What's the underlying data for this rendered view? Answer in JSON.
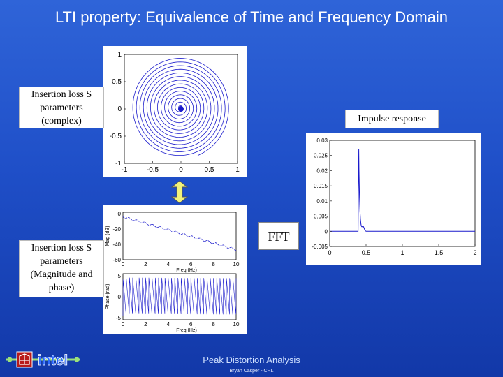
{
  "slide": {
    "title": "LTI property: Equivalence of Time and Frequency Domain",
    "footer_title": "Peak Distortion Analysis",
    "footer_author": "Bryan Casper - CRL",
    "logo_text": "intel"
  },
  "labels": {
    "complex": "Insertion loss S parameters (complex)",
    "impulse": "Impulse response",
    "magphase": "Insertion loss S parameters (Magnitude and phase)",
    "fft": "FFT"
  },
  "colors": {
    "background": "#1f4fc8",
    "plot_line": "#1a1acc",
    "plot_bg": "#ffffff"
  },
  "chart_data": [
    {
      "type": "line",
      "name": "complex-spiral",
      "xlim": [
        -1,
        1
      ],
      "ylim": [
        -1,
        1
      ],
      "xticks": [
        "-1",
        "-0.5",
        "0",
        "0.5",
        "1"
      ],
      "yticks": [
        "1",
        "0.5",
        "0",
        "-0.5",
        "-1"
      ]
    },
    {
      "type": "line",
      "name": "magnitude",
      "xticks": [
        "0",
        "2",
        "4",
        "6",
        "8",
        "10"
      ],
      "yticks": [
        "0",
        "-20",
        "-40",
        "-60"
      ],
      "ylabel": "Mag (dB)",
      "xlabel": "Freq (Hz)"
    },
    {
      "type": "line",
      "name": "phase",
      "xticks": [
        "0",
        "2",
        "4",
        "6",
        "8",
        "10"
      ],
      "yticks": [
        "5",
        "0",
        "-5"
      ],
      "ylabel": "Phase (rad)",
      "xlabel": "Freq (Hz)"
    },
    {
      "type": "line",
      "name": "impulse",
      "xlim": [
        0,
        2
      ],
      "ylim": [
        -0.005,
        0.03
      ],
      "xticks": [
        "0",
        "0.5",
        "1",
        "1.5",
        "2"
      ],
      "yticks": [
        "0.03",
        "0.025",
        "0.02",
        "0.015",
        "0.01",
        "0.005",
        "0",
        "-0.005"
      ],
      "peak": {
        "x": 0.4,
        "y": 0.027
      }
    }
  ]
}
